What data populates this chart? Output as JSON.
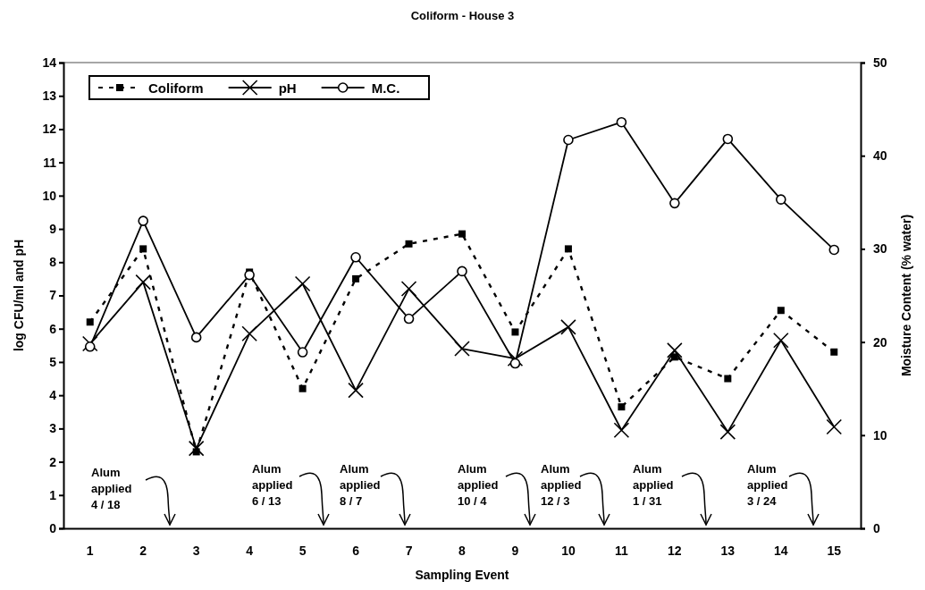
{
  "chart_data": {
    "type": "line",
    "title": "Coliform - House 3",
    "xlabel": "Sampling Event",
    "ylabel": "log CFU/ml and pH",
    "y2label": "Moisture Content (% water)",
    "categories": [
      "1",
      "2",
      "3",
      "4",
      "5",
      "6",
      "7",
      "8",
      "9",
      "10",
      "11",
      "12",
      "13",
      "14",
      "15"
    ],
    "series": [
      {
        "name": "Coliform",
        "color": "#000000",
        "marker": "square",
        "line_style": "dashed",
        "values": [
          6.2,
          8.4,
          2.3,
          7.7,
          4.2,
          7.5,
          8.55,
          8.85,
          5.9,
          8.4,
          3.65,
          5.15,
          4.5,
          6.55,
          5.3
        ]
      },
      {
        "name": "pH",
        "color": "#000000",
        "marker": "cross",
        "line_style": "solid",
        "values": [
          5.55,
          7.4,
          2.4,
          5.85,
          7.35,
          4.15,
          7.2,
          5.4,
          5.1,
          6.05,
          2.95,
          5.35,
          2.9,
          5.65,
          3.05
        ]
      },
      {
        "name": "M.C.",
        "color": "#000000",
        "marker": "circle",
        "line_style": "solid",
        "axis": "y2",
        "values": [
          19.5,
          33.0,
          20.5,
          27.2,
          18.9,
          29.1,
          22.5,
          27.6,
          17.7,
          41.7,
          43.6,
          34.9,
          41.8,
          35.3,
          29.9
        ]
      }
    ],
    "ylim": [
      0,
      14
    ],
    "yticks": [
      0,
      1,
      2,
      3,
      4,
      5,
      6,
      7,
      8,
      9,
      10,
      11,
      12,
      13,
      14
    ],
    "y2lim": [
      0,
      50
    ],
    "y2ticks": [
      0,
      10,
      20,
      30,
      40,
      50
    ],
    "legend": "top left",
    "grid": false,
    "annotations": [
      "Alum applied 4 / 18",
      "Alum applied 6 / 13",
      "Alum applied 8 / 7",
      "Alum applied 10 / 4",
      "Alum applied 12 / 3",
      "Alum applied 1 / 31",
      "Alum applied 3 / 24"
    ]
  }
}
